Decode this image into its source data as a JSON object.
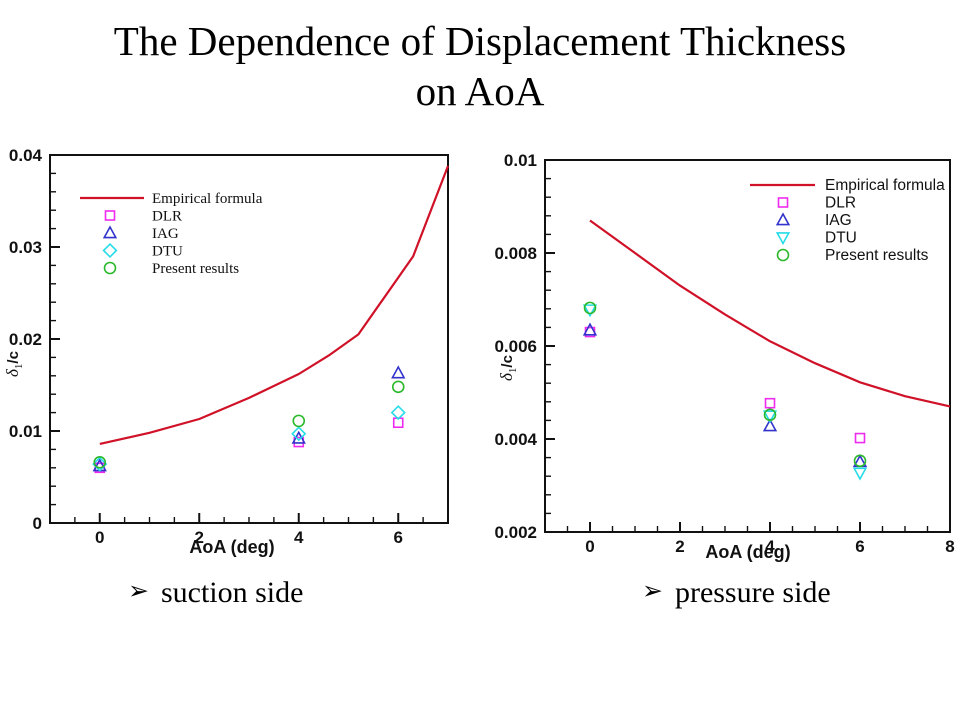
{
  "slide": {
    "title_line1": "The Dependence of Displacement Thickness",
    "title_line2": "on AoA",
    "captions": {
      "bullet": "➢",
      "left": "suction side",
      "right": "pressure side"
    }
  },
  "colors": {
    "frame": "#111111",
    "text": "#111111",
    "empirical_red": "#d01228",
    "dlr_magenta": "#ee2bee",
    "iag_blue": "#3232cd",
    "dtu_cyan": "#26dce8",
    "present_green": "#2cb82c"
  },
  "chart_data": [
    {
      "type": "line+scatter",
      "title": "suction side",
      "xlabel": "AoA (deg)",
      "ylabel": {
        "sym": "δ",
        "sub": "1",
        "rest": "/c"
      },
      "xlim": [
        -1,
        7
      ],
      "ylim": [
        0,
        0.04
      ],
      "grid": false,
      "x_ticks": [
        {
          "v": 0,
          "label": "0"
        },
        {
          "v": 2,
          "label": "2"
        },
        {
          "v": 4,
          "label": "4"
        },
        {
          "v": 6,
          "label": "6"
        }
      ],
      "x_minor_step": 0.5,
      "y_ticks": [
        {
          "v": 0,
          "label": "0"
        },
        {
          "v": 0.01,
          "label": "0.01"
        },
        {
          "v": 0.02,
          "label": "0.02"
        },
        {
          "v": 0.03,
          "label": "0.03"
        },
        {
          "v": 0.04,
          "label": "0.04"
        }
      ],
      "y_minor_step": 0.002,
      "legend_position": "top-left",
      "line_series": {
        "name": "Empirical formula",
        "color": "#d01228",
        "points": [
          [
            0,
            0.0086
          ],
          [
            1,
            0.0098
          ],
          [
            2,
            0.0113
          ],
          [
            3,
            0.0136
          ],
          [
            4,
            0.0162
          ],
          [
            4.6,
            0.0182
          ],
          [
            5.2,
            0.0205
          ],
          [
            6.3,
            0.029
          ],
          [
            7,
            0.0388
          ]
        ]
      },
      "scatter_series": [
        {
          "name": "DLR",
          "marker": "square",
          "color": "#ee2bee",
          "points": [
            [
              0,
              0.006
            ],
            [
              4,
              0.0088
            ],
            [
              6,
              0.0109
            ]
          ]
        },
        {
          "name": "IAG",
          "marker": "triangle-up",
          "color": "#3232cd",
          "points": [
            [
              0,
              0.0062
            ],
            [
              4,
              0.0092
            ],
            [
              6,
              0.0163
            ]
          ]
        },
        {
          "name": "DTU",
          "marker": "diamond",
          "color": "#26dce8",
          "points": [
            [
              0,
              0.0064
            ],
            [
              4,
              0.0097
            ],
            [
              6,
              0.012
            ]
          ]
        },
        {
          "name": "Present results",
          "marker": "circle",
          "color": "#2cb82c",
          "points": [
            [
              0,
              0.0066
            ],
            [
              4,
              0.0111
            ],
            [
              6,
              0.0148
            ]
          ]
        }
      ]
    },
    {
      "type": "line+scatter",
      "title": "pressure side",
      "xlabel": "AoA (deg)",
      "ylabel": {
        "sym": "δ",
        "sub": "1",
        "rest": "/c"
      },
      "xlim": [
        -1,
        8
      ],
      "ylim": [
        0.002,
        0.01
      ],
      "grid": false,
      "x_ticks": [
        {
          "v": 0,
          "label": "0"
        },
        {
          "v": 2,
          "label": "2"
        },
        {
          "v": 4,
          "label": "4"
        },
        {
          "v": 6,
          "label": "6"
        },
        {
          "v": 8,
          "label": "8"
        }
      ],
      "x_minor_step": 0.5,
      "y_ticks": [
        {
          "v": 0.002,
          "label": "0.002"
        },
        {
          "v": 0.004,
          "label": "0.004"
        },
        {
          "v": 0.006,
          "label": "0.006"
        },
        {
          "v": 0.008,
          "label": "0.008"
        },
        {
          "v": 0.01,
          "label": "0.01"
        }
      ],
      "y_minor_step": 0.0004,
      "legend_position": "top-right",
      "line_series": {
        "name": "Empirical formula",
        "color": "#d01228",
        "points": [
          [
            0,
            0.0087
          ],
          [
            1,
            0.008
          ],
          [
            2,
            0.0073
          ],
          [
            3,
            0.00668
          ],
          [
            4,
            0.0061
          ],
          [
            5,
            0.00563
          ],
          [
            6,
            0.00522
          ],
          [
            7,
            0.00492
          ],
          [
            8,
            0.0047
          ]
        ]
      },
      "scatter_series": [
        {
          "name": "DLR",
          "marker": "square",
          "color": "#ee2bee",
          "points": [
            [
              0,
              0.0063
            ],
            [
              4,
              0.00477
            ],
            [
              6,
              0.00402
            ]
          ]
        },
        {
          "name": "IAG",
          "marker": "triangle-up",
          "color": "#3232cd",
          "points": [
            [
              0,
              0.00634
            ],
            [
              4,
              0.00428
            ],
            [
              6,
              0.00351
            ]
          ]
        },
        {
          "name": "DTU",
          "marker": "triangle-down",
          "color": "#26dce8",
          "points": [
            [
              0,
              0.00678
            ],
            [
              4,
              0.0045
            ],
            [
              6,
              0.00327
            ]
          ]
        },
        {
          "name": "Present results",
          "marker": "circle",
          "color": "#2cb82c",
          "points": [
            [
              0,
              0.00682
            ],
            [
              4,
              0.00452
            ],
            [
              6,
              0.00353
            ]
          ]
        }
      ]
    }
  ]
}
